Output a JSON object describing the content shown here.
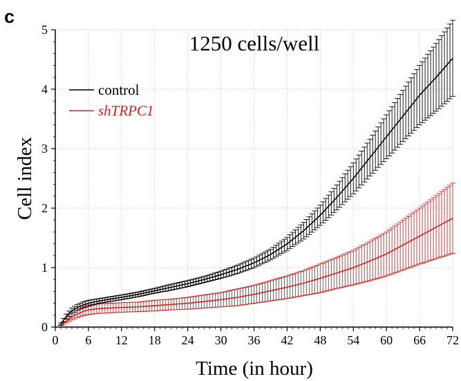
{
  "panel_label": "c",
  "chart_data": {
    "type": "line",
    "title": "1250 cells/well",
    "xlabel": "Time (in hour)",
    "ylabel": "Cell index",
    "xlim": [
      0,
      72
    ],
    "ylim": [
      0,
      5
    ],
    "xticks": [
      0,
      6,
      12,
      18,
      24,
      30,
      36,
      42,
      48,
      54,
      60,
      66,
      72
    ],
    "yticks": [
      0,
      1,
      2,
      3,
      4,
      5
    ],
    "grid": true,
    "legend": "top-left",
    "x": [
      1,
      2,
      3,
      4,
      5,
      6,
      8,
      10,
      12,
      15,
      18,
      21,
      24,
      27,
      30,
      33,
      36,
      39,
      42,
      45,
      48,
      51,
      54,
      57,
      60,
      63,
      66,
      69,
      72
    ],
    "series": [
      {
        "name": "control",
        "color": "#000000",
        "italic": false,
        "values": [
          0.05,
          0.18,
          0.27,
          0.33,
          0.37,
          0.4,
          0.44,
          0.47,
          0.5,
          0.55,
          0.61,
          0.67,
          0.73,
          0.8,
          0.88,
          0.97,
          1.08,
          1.22,
          1.4,
          1.62,
          1.88,
          2.18,
          2.5,
          2.85,
          3.2,
          3.55,
          3.9,
          4.2,
          4.52
        ],
        "err": [
          0.02,
          0.04,
          0.05,
          0.05,
          0.05,
          0.05,
          0.04,
          0.04,
          0.04,
          0.04,
          0.04,
          0.05,
          0.05,
          0.05,
          0.06,
          0.07,
          0.08,
          0.09,
          0.11,
          0.14,
          0.17,
          0.21,
          0.26,
          0.31,
          0.37,
          0.43,
          0.5,
          0.57,
          0.64
        ]
      },
      {
        "name": "shTRPC1",
        "color": "#d62020",
        "italic": true,
        "values": [
          0.02,
          0.1,
          0.17,
          0.22,
          0.26,
          0.29,
          0.31,
          0.32,
          0.33,
          0.34,
          0.36,
          0.38,
          0.4,
          0.43,
          0.46,
          0.5,
          0.55,
          0.61,
          0.67,
          0.74,
          0.82,
          0.91,
          1.0,
          1.11,
          1.23,
          1.38,
          1.53,
          1.68,
          1.83
        ],
        "err": [
          0.02,
          0.03,
          0.05,
          0.06,
          0.07,
          0.08,
          0.08,
          0.08,
          0.08,
          0.08,
          0.09,
          0.09,
          0.1,
          0.11,
          0.12,
          0.14,
          0.15,
          0.17,
          0.19,
          0.21,
          0.24,
          0.26,
          0.29,
          0.33,
          0.37,
          0.42,
          0.47,
          0.53,
          0.59
        ]
      }
    ]
  }
}
